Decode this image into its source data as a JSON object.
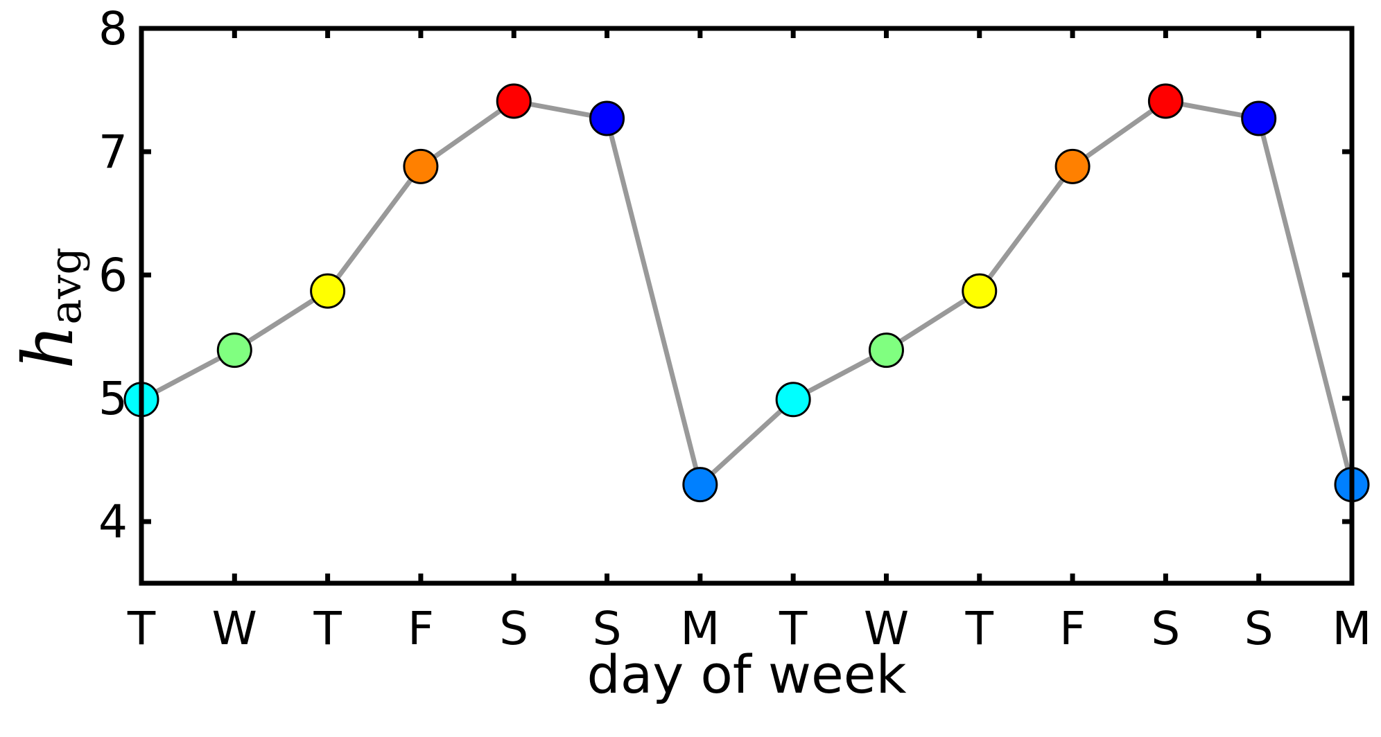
{
  "chart_data": {
    "type": "line",
    "title": "",
    "xlabel": "day of week",
    "ylabel": {
      "main": "h",
      "sub": "avg"
    },
    "categories": [
      "T",
      "W",
      "T",
      "F",
      "S",
      "S",
      "M",
      "T",
      "W",
      "T",
      "F",
      "S",
      "S",
      "M"
    ],
    "values": [
      4.99,
      5.39,
      5.87,
      6.88,
      7.41,
      7.27,
      4.3,
      4.99,
      5.39,
      5.87,
      6.88,
      7.41,
      7.27,
      4.3
    ],
    "point_colors": [
      "#00ffff",
      "#80ff80",
      "#ffff00",
      "#ff8000",
      "#ff0000",
      "#0000ff",
      "#0080ff",
      "#00ffff",
      "#80ff80",
      "#ffff00",
      "#ff8000",
      "#ff0000",
      "#0000ff",
      "#0080ff"
    ],
    "line_color": "#999999",
    "ylim": [
      3.5,
      8
    ],
    "yticks": [
      4,
      5,
      6,
      7,
      8
    ],
    "grid": false,
    "legend": "none"
  }
}
